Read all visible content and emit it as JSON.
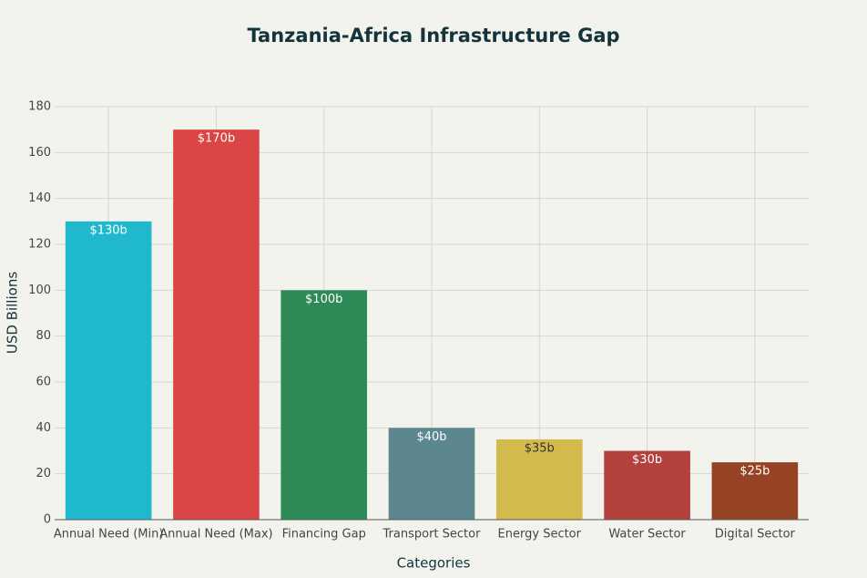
{
  "chart_data": {
    "type": "bar",
    "title": "Tanzania-Africa Infrastructure Gap",
    "x_label": "Categories",
    "y_label": "USD Billions",
    "categories": [
      "Annual Need (Min)",
      "Annual Need (Max)",
      "Financing Gap",
      "Transport Sector",
      "Energy Sector",
      "Water Sector",
      "Digital Sector"
    ],
    "values": [
      130,
      170,
      100,
      40,
      35,
      30,
      25
    ],
    "value_labels": [
      "$130b",
      "$170b",
      "$100b",
      "$40b",
      "$35b",
      "$30b",
      "$25b"
    ],
    "colors": [
      "#1fb8cd",
      "#db4545",
      "#2e8b57",
      "#5d878f",
      "#d2ba4c",
      "#b4413c",
      "#964325"
    ],
    "ylim": [
      0,
      180
    ],
    "yticks": [
      0,
      20,
      40,
      60,
      80,
      100,
      120,
      140,
      160,
      180
    ],
    "grid": true
  }
}
